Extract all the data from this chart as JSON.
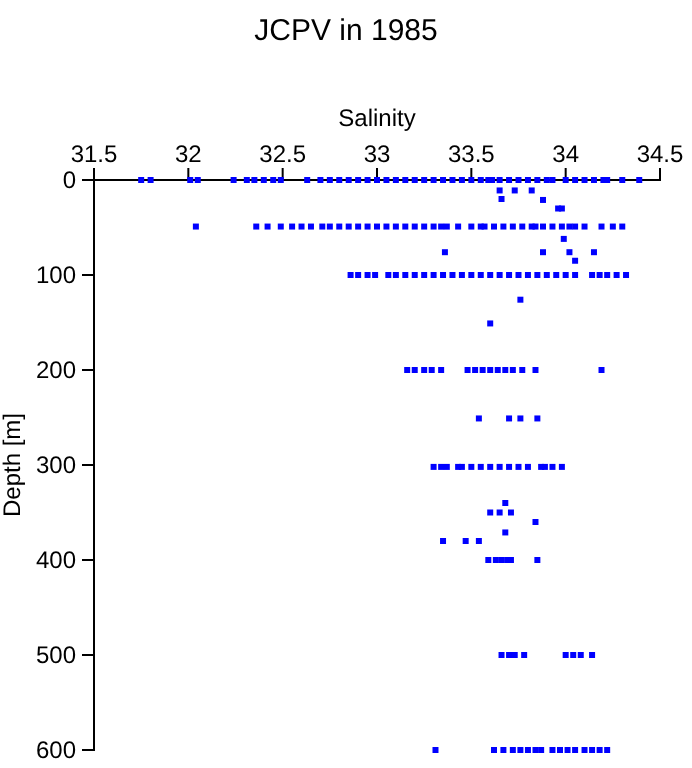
{
  "chart_data": {
    "type": "scatter",
    "title": "JCPV in 1985",
    "xlabel": "Salinity",
    "ylabel": "Depth [m]",
    "xlim": [
      31.5,
      34.5
    ],
    "xticks": [
      31.5,
      32,
      32.5,
      33,
      33.5,
      34,
      34.5
    ],
    "ylim": [
      600,
      0
    ],
    "yticks": [
      0,
      100,
      200,
      300,
      400,
      500,
      600
    ],
    "grid": false,
    "marker": "square",
    "series": [
      {
        "color": "#0000ff",
        "x": [
          31.75,
          31.8,
          32.01,
          32.05,
          32.24,
          32.31,
          32.35,
          32.4,
          32.45,
          32.49,
          32.63,
          32.7,
          32.75,
          32.8,
          32.85,
          32.9,
          32.95,
          33.0,
          33.05,
          33.1,
          33.15,
          33.2,
          33.25,
          33.3,
          33.35,
          33.4,
          33.45,
          33.5,
          33.55,
          33.59,
          33.61,
          33.65,
          33.7,
          33.75,
          33.8,
          33.85,
          33.9,
          33.93,
          34.0,
          34.05,
          34.1,
          34.15,
          34.2,
          34.22,
          34.3,
          34.39,
          33.65,
          33.73,
          33.82,
          33.66,
          33.88,
          33.96,
          33.98,
          32.04,
          32.36,
          32.42,
          32.49,
          32.55,
          32.6,
          32.65,
          32.71,
          32.75,
          32.8,
          32.85,
          32.9,
          32.95,
          33.0,
          33.05,
          33.1,
          33.15,
          33.2,
          33.25,
          33.3,
          33.34,
          33.37,
          33.43,
          33.5,
          33.55,
          33.57,
          33.62,
          33.67,
          33.72,
          33.77,
          33.82,
          33.84,
          33.88,
          33.93,
          33.98,
          34.02,
          34.05,
          34.1,
          34.19,
          34.25,
          34.3,
          33.99,
          33.36,
          33.88,
          34.02,
          34.15,
          34.05,
          32.86,
          32.9,
          32.95,
          32.99,
          33.06,
          33.1,
          33.15,
          33.2,
          33.25,
          33.3,
          33.35,
          33.4,
          33.45,
          33.5,
          33.55,
          33.6,
          33.65,
          33.7,
          33.75,
          33.8,
          33.85,
          33.9,
          33.95,
          34.0,
          34.05,
          34.14,
          34.18,
          34.22,
          34.27,
          34.32,
          33.76,
          33.6,
          33.16,
          33.2,
          33.25,
          33.29,
          33.34,
          33.48,
          33.52,
          33.56,
          33.6,
          33.64,
          33.68,
          33.72,
          33.77,
          33.84,
          34.19,
          33.54,
          33.7,
          33.76,
          33.85,
          33.3,
          33.34,
          33.37,
          33.43,
          33.45,
          33.5,
          33.55,
          33.6,
          33.65,
          33.7,
          33.75,
          33.8,
          33.87,
          33.89,
          33.93,
          33.98,
          33.68,
          33.6,
          33.65,
          33.71,
          33.84,
          33.68,
          33.35,
          33.47,
          33.54,
          33.59,
          33.63,
          33.66,
          33.69,
          33.71,
          33.85,
          33.66,
          33.7,
          33.73,
          33.78,
          34.0,
          34.04,
          34.08,
          34.14,
          33.31,
          33.62,
          33.67,
          33.72,
          33.76,
          33.8,
          33.84,
          33.87,
          33.93,
          33.97,
          34.01,
          34.05,
          34.1,
          34.14,
          34.18,
          34.22
        ],
        "values": [
          0,
          0,
          0,
          0,
          0,
          0,
          0,
          0,
          0,
          0,
          0,
          0,
          0,
          0,
          0,
          0,
          0,
          0,
          0,
          0,
          0,
          0,
          0,
          0,
          0,
          0,
          0,
          0,
          0,
          0,
          0,
          0,
          0,
          0,
          0,
          0,
          0,
          0,
          0,
          0,
          0,
          0,
          0,
          0,
          0,
          0,
          11,
          11,
          11,
          20,
          21,
          30,
          30,
          49,
          49,
          49,
          49,
          49,
          49,
          49,
          49,
          49,
          49,
          49,
          49,
          49,
          49,
          49,
          49,
          49,
          49,
          49,
          49,
          49,
          49,
          49,
          49,
          49,
          49,
          49,
          49,
          49,
          49,
          49,
          49,
          49,
          49,
          49,
          49,
          49,
          49,
          49,
          49,
          49,
          62,
          76,
          76,
          76,
          76,
          85,
          100,
          100,
          100,
          100,
          100,
          100,
          100,
          100,
          100,
          100,
          100,
          100,
          100,
          100,
          100,
          100,
          100,
          100,
          100,
          100,
          100,
          100,
          100,
          100,
          100,
          100,
          100,
          100,
          100,
          100,
          126,
          151,
          200,
          200,
          200,
          200,
          200,
          200,
          200,
          200,
          200,
          200,
          200,
          200,
          200,
          200,
          200,
          251,
          251,
          251,
          251,
          302,
          302,
          302,
          302,
          302,
          302,
          302,
          302,
          302,
          302,
          302,
          302,
          302,
          302,
          302,
          302,
          340,
          350,
          350,
          350,
          360,
          371,
          380,
          380,
          380,
          400,
          400,
          400,
          400,
          400,
          400,
          500,
          500,
          500,
          500,
          500,
          500,
          500,
          500,
          600,
          600,
          600,
          600,
          600,
          600,
          600,
          600,
          600,
          600,
          600,
          600,
          600,
          600,
          600,
          600
        ]
      }
    ]
  }
}
